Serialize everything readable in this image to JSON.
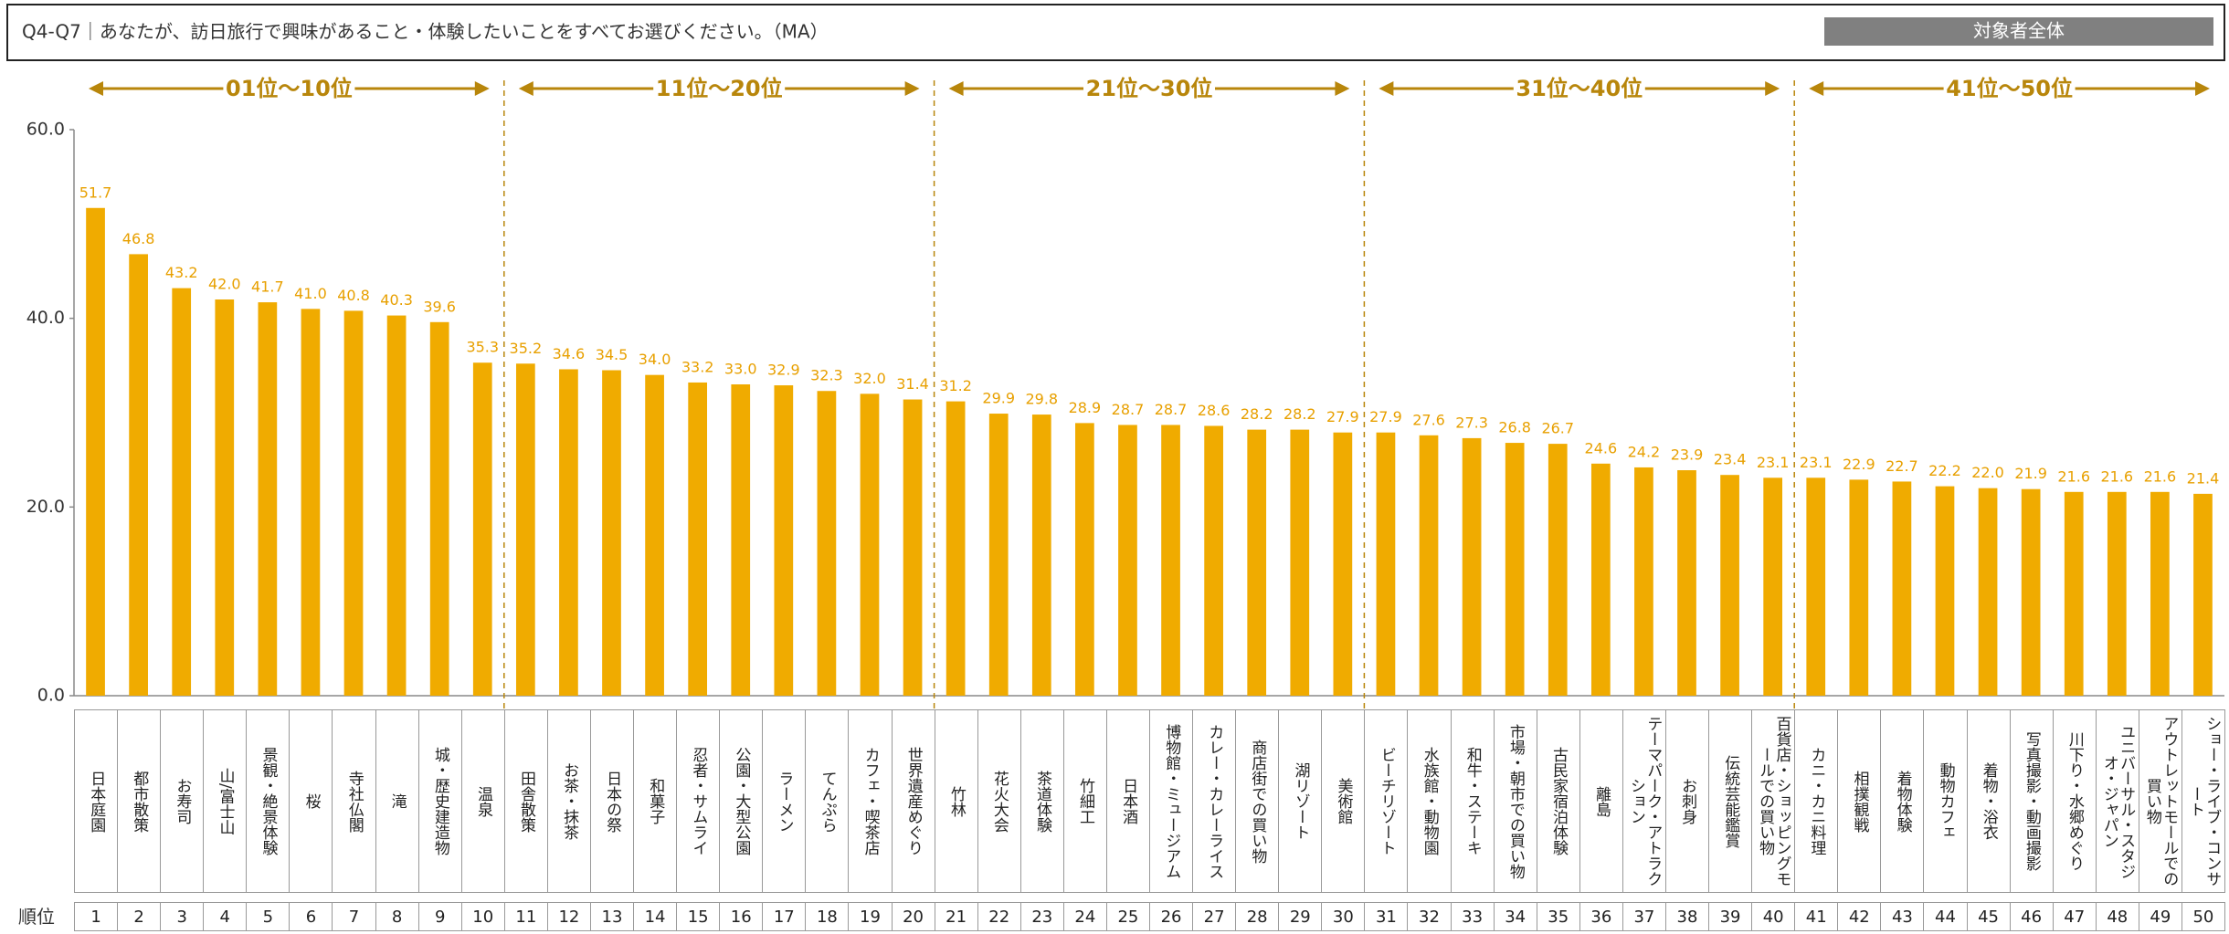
{
  "header": {
    "title": "Q4-Q7｜あなたが、訪日旅行で興味があること・体験したいことをすべてお選びください。（MA）",
    "badge": "対象者全体"
  },
  "chart_data": {
    "type": "bar",
    "ranges": [
      "01位～10位",
      "11位～20位",
      "21位～30位",
      "31位～40位",
      "41位～50位"
    ],
    "rank_label": "順位",
    "ranks": [
      1,
      2,
      3,
      4,
      5,
      6,
      7,
      8,
      9,
      10,
      11,
      12,
      13,
      14,
      15,
      16,
      17,
      18,
      19,
      20,
      21,
      22,
      23,
      24,
      25,
      26,
      27,
      28,
      29,
      30,
      31,
      32,
      33,
      34,
      35,
      36,
      37,
      38,
      39,
      40,
      41,
      42,
      43,
      44,
      45,
      46,
      47,
      48,
      49,
      50
    ],
    "categories": [
      "日本庭園",
      "都市散策",
      "お寿司",
      "山/富士山",
      "景観・絶景体験",
      "桜",
      "寺社仏閣",
      "滝",
      "城・歴史建造物",
      "温泉",
      "田舎散策",
      "お茶・抹茶",
      "日本の祭",
      "和菓子",
      "忍者・サムライ",
      "公園・大型公園",
      "ラーメン",
      "てんぷら",
      "カフェ・喫茶店",
      "世界遺産めぐり",
      "竹林",
      "花火大会",
      "茶道体験",
      "竹細工",
      "日本酒",
      "博物館・ミュージアム",
      "カレー・カレーライス",
      "商店街での買い物",
      "湖リゾート",
      "美術館",
      "ビーチリゾート",
      "水族館・動物園",
      "和牛・ステーキ",
      "市場・朝市での買い物",
      "古民家宿泊体験",
      "離島",
      "テーマパーク・アトラクション",
      "お刺身",
      "伝統芸能鑑賞",
      "百貨店・ショッピングモールでの買い物",
      "カニ・カニ料理",
      "相撲観戦",
      "着物体験",
      "動物カフェ",
      "着物・浴衣",
      "写真撮影・動画撮影",
      "川下り・水郷めぐり",
      "ユニバーサル・スタジオ・ジャパン",
      "アウトレットモールでの買い物",
      "ショー・ライブ・コンサート"
    ],
    "values": [
      51.7,
      46.8,
      43.2,
      42.0,
      41.7,
      41.0,
      40.8,
      40.3,
      39.6,
      35.3,
      35.2,
      34.6,
      34.5,
      34.0,
      33.2,
      33.0,
      32.9,
      32.3,
      32.0,
      31.4,
      31.2,
      29.9,
      29.8,
      28.9,
      28.7,
      28.7,
      28.6,
      28.2,
      28.2,
      27.9,
      27.9,
      27.6,
      27.3,
      26.8,
      26.7,
      24.6,
      24.2,
      23.9,
      23.4,
      23.1,
      23.1,
      22.9,
      22.7,
      22.2,
      22.0,
      21.9,
      21.6,
      21.6,
      21.6,
      21.4
    ],
    "value_labels": [
      "51.7",
      "46.8",
      "43.2",
      "42.0",
      "41.7",
      "41.0",
      "40.8",
      "40.3",
      "39.6",
      "35.3",
      "35.2",
      "34.6",
      "34.5",
      "34.0",
      "33.2",
      "33.0",
      "32.9",
      "32.3",
      "32.0",
      "31.4",
      "31.2",
      "29.9",
      "29.8",
      "28.9",
      "28.7",
      "28.7",
      "28.6",
      "28.2",
      "28.2",
      "27.9",
      "27.9",
      "27.6",
      "27.3",
      "26.8",
      "26.7",
      "24.6",
      "24.2",
      "23.9",
      "23.4",
      "23.1",
      "23.1",
      "22.9",
      "22.7",
      "22.2",
      "22.0",
      "21.9",
      "21.6",
      "21.6",
      "21.6",
      "21.4"
    ],
    "color": "#f0ab00",
    "ylim": [
      0,
      60
    ],
    "yticks": [
      {
        "value": 0,
        "label": "0.0"
      },
      {
        "value": 20,
        "label": "20.0"
      },
      {
        "value": 40,
        "label": "40.0"
      },
      {
        "value": 60,
        "label": "60.0"
      }
    ],
    "grid": false
  }
}
